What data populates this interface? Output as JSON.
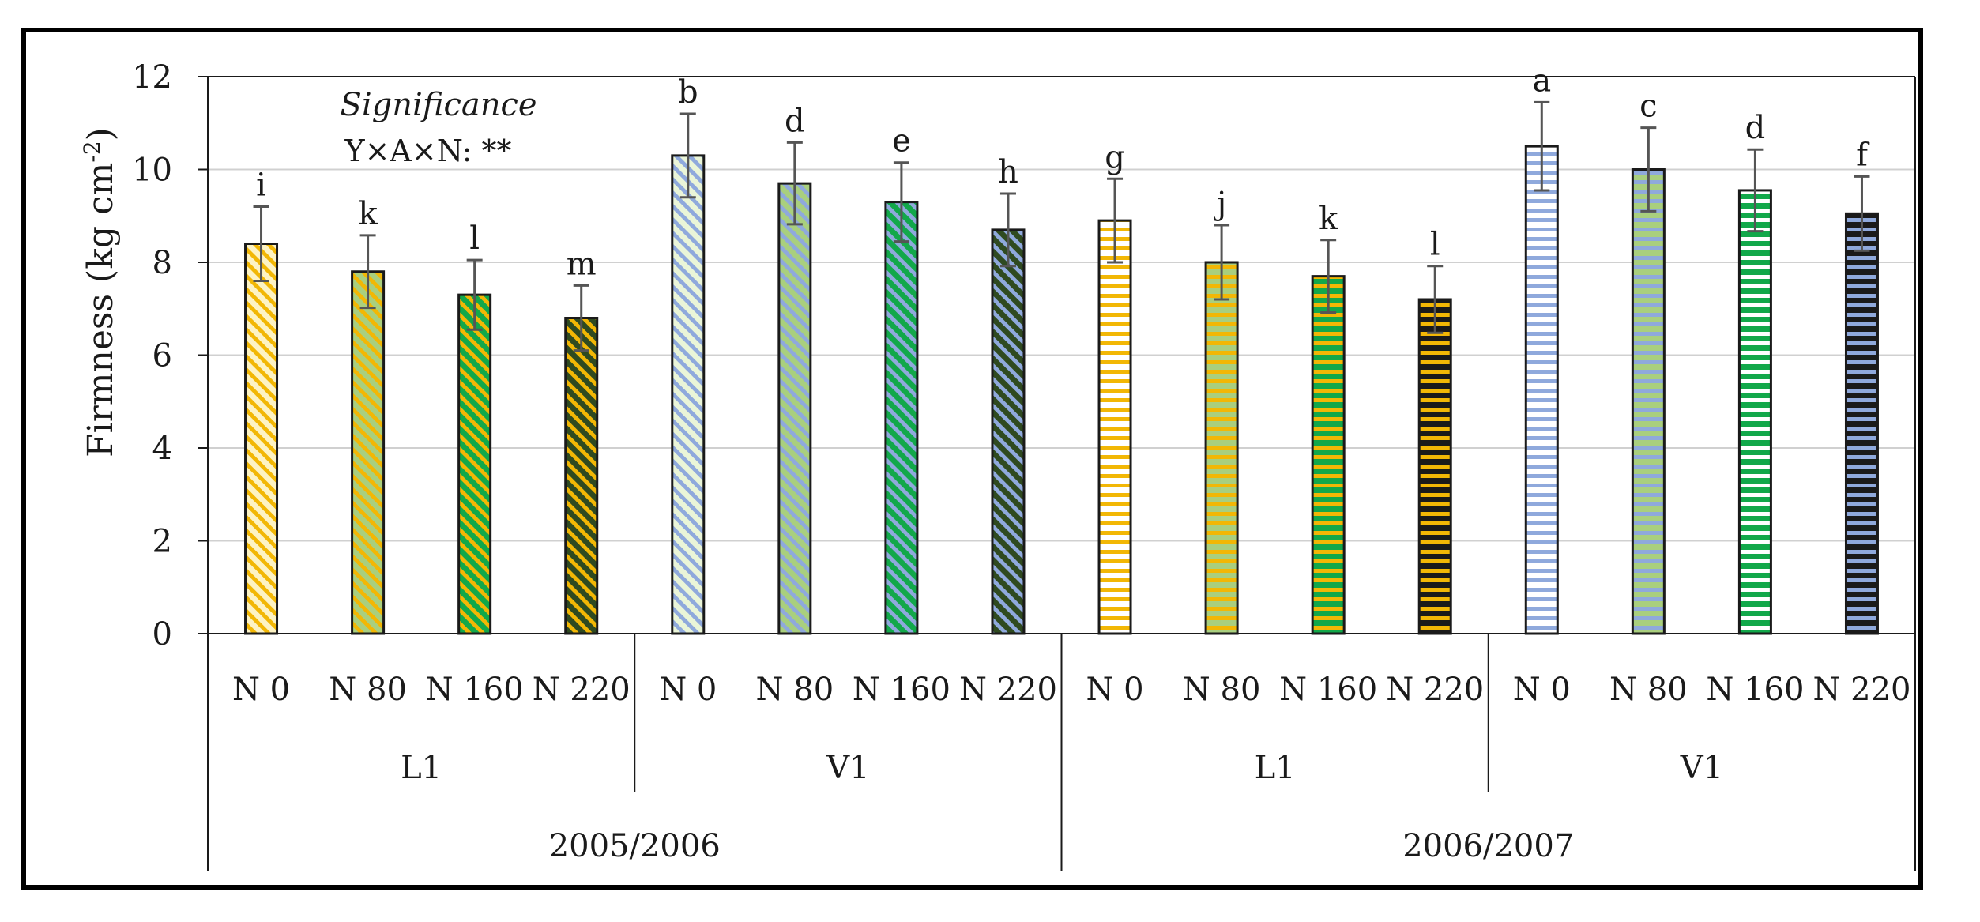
{
  "chart_data": {
    "type": "bar",
    "ylabel": "Firmness (kg cm",
    "ylabel_sup": "-2",
    "ylabel_close": ")",
    "ylim": [
      0,
      12
    ],
    "yticks": [
      "0",
      "2",
      "4",
      "6",
      "8",
      "10",
      "12"
    ],
    "grid": true,
    "annotation": {
      "title": "Significance",
      "text": "Y×A×N: **"
    },
    "categories": [
      "N 0",
      "N 80",
      "N 160",
      "N 220",
      "N 0",
      "N 80",
      "N 160",
      "N 220",
      "N 0",
      "N 80",
      "N 160",
      "N 220",
      "N 0",
      "N 80",
      "N 160",
      "N 220"
    ],
    "groups_level2": [
      "L1",
      "V1",
      "L1",
      "V1"
    ],
    "groups_level1": [
      "2005/2006",
      "2006/2007"
    ],
    "values": [
      8.4,
      7.8,
      7.3,
      6.8,
      10.3,
      9.7,
      9.3,
      8.7,
      8.9,
      8.0,
      7.7,
      7.2,
      10.5,
      10.0,
      9.55,
      9.05
    ],
    "errors": [
      0.8,
      0.78,
      0.75,
      0.7,
      0.9,
      0.88,
      0.85,
      0.78,
      0.9,
      0.8,
      0.78,
      0.72,
      0.95,
      0.9,
      0.88,
      0.8
    ],
    "letters": [
      "i",
      "k",
      "l",
      "m",
      "b",
      "d",
      "e",
      "h",
      "g",
      "j",
      "k",
      "l",
      "a",
      "c",
      "d",
      "f"
    ],
    "patterns": [
      {
        "bg": "#fdf3c4",
        "fg": "#f2b705",
        "style": "diagonal"
      },
      {
        "bg": "#a9cf7e",
        "fg": "#f2b705",
        "style": "diagonal"
      },
      {
        "bg": "#12a84a",
        "fg": "#f2b705",
        "style": "diagonal"
      },
      {
        "bg": "#2f4a20",
        "fg": "#f2b705",
        "style": "diagonal"
      },
      {
        "bg": "#eaf5d8",
        "fg": "#8fa9dc",
        "style": "diagonal"
      },
      {
        "bg": "#a9cf7e",
        "fg": "#8fa9dc",
        "style": "diagonal"
      },
      {
        "bg": "#12a84a",
        "fg": "#8fa9dc",
        "style": "diagonal"
      },
      {
        "bg": "#2f4a20",
        "fg": "#8fa9dc",
        "style": "diagonal"
      },
      {
        "bg": "#ffffff",
        "fg": "#f2b705",
        "style": "horizontal"
      },
      {
        "bg": "#a9cf7e",
        "fg": "#f2b705",
        "style": "horizontal"
      },
      {
        "bg": "#12a84a",
        "fg": "#f2b705",
        "style": "horizontal"
      },
      {
        "bg": "#1a1a1a",
        "fg": "#f2b705",
        "style": "horizontal"
      },
      {
        "bg": "#ffffff",
        "fg": "#8fa9dc",
        "style": "horizontal"
      },
      {
        "bg": "#a9cf7e",
        "fg": "#8fa9dc",
        "style": "horizontal"
      },
      {
        "bg": "#12a84a",
        "fg": "#ffffff",
        "style": "horizontal"
      },
      {
        "bg": "#1a1a1a",
        "fg": "#8fa9dc",
        "style": "horizontal"
      }
    ],
    "colors": {
      "gridline": "#d0d0d0",
      "axis": "#1a1a1a",
      "error_bar": "#555555"
    }
  }
}
